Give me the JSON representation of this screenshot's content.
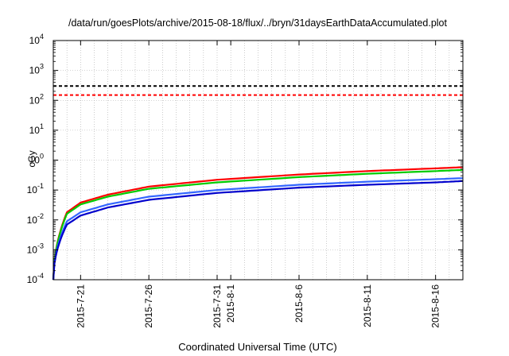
{
  "chart_data": {
    "type": "line",
    "title": "/data/run/goesPlots/archive/2015-08-18/flux/../bryn/31daysEarthDataAccumulated.plot",
    "xlabel": "Coordinated Universal Time (UTC)",
    "ylabel": "cGy",
    "yscale": "log",
    "ylim": [
      0.0001,
      10000
    ],
    "xlim": [
      "2015-07-19",
      "2015-08-18"
    ],
    "grid": true,
    "y_ticks": [
      {
        "base": "10",
        "exp": "-4",
        "value": 0.0001
      },
      {
        "base": "10",
        "exp": "-3",
        "value": 0.001
      },
      {
        "base": "10",
        "exp": "-2",
        "value": 0.01
      },
      {
        "base": "10",
        "exp": "-1",
        "value": 0.1
      },
      {
        "base": "10",
        "exp": "0",
        "value": 1
      },
      {
        "base": "10",
        "exp": "1",
        "value": 10
      },
      {
        "base": "10",
        "exp": "2",
        "value": 100
      },
      {
        "base": "10",
        "exp": "3",
        "value": 1000
      },
      {
        "base": "10",
        "exp": "4",
        "value": 10000
      }
    ],
    "x_ticks": [
      {
        "label": "2015-7-21",
        "date": "2015-07-21"
      },
      {
        "label": "2015-7-26",
        "date": "2015-07-26"
      },
      {
        "label": "2015-7-31",
        "date": "2015-07-31"
      },
      {
        "label": "2015-8-1",
        "date": "2015-08-01"
      },
      {
        "label": "2015-8-6",
        "date": "2015-08-06"
      },
      {
        "label": "2015-8-11",
        "date": "2015-08-11"
      },
      {
        "label": "2015-8-16",
        "date": "2015-08-16"
      }
    ],
    "reference_lines": [
      {
        "value": 300,
        "color": "#000000",
        "style": "dashed"
      },
      {
        "value": 150,
        "color": "#ff0000",
        "style": "dashed"
      }
    ],
    "series": [
      {
        "color": "#ff0000",
        "x": [
          "2015-07-19",
          "2015-07-20",
          "2015-07-21",
          "2015-07-23",
          "2015-07-26",
          "2015-07-31",
          "2015-08-06",
          "2015-08-11",
          "2015-08-16",
          "2015-08-18"
        ],
        "values": [
          0.0001,
          0.018,
          0.038,
          0.07,
          0.13,
          0.22,
          0.33,
          0.43,
          0.53,
          0.58
        ]
      },
      {
        "color": "#00cc00",
        "x": [
          "2015-07-19",
          "2015-07-20",
          "2015-07-21",
          "2015-07-23",
          "2015-07-26",
          "2015-07-31",
          "2015-08-06",
          "2015-08-11",
          "2015-08-16",
          "2015-08-18"
        ],
        "values": [
          0.0001,
          0.016,
          0.033,
          0.06,
          0.11,
          0.18,
          0.27,
          0.35,
          0.43,
          0.47
        ]
      },
      {
        "color": "#3366ff",
        "x": [
          "2015-07-19",
          "2015-07-20",
          "2015-07-21",
          "2015-07-23",
          "2015-07-26",
          "2015-07-31",
          "2015-08-06",
          "2015-08-11",
          "2015-08-16",
          "2015-08-18"
        ],
        "values": [
          0.0001,
          0.009,
          0.018,
          0.033,
          0.06,
          0.1,
          0.15,
          0.19,
          0.23,
          0.25
        ]
      },
      {
        "color": "#0000cc",
        "x": [
          "2015-07-19",
          "2015-07-20",
          "2015-07-21",
          "2015-07-23",
          "2015-07-26",
          "2015-07-31",
          "2015-08-06",
          "2015-08-11",
          "2015-08-16",
          "2015-08-18"
        ],
        "values": [
          0.0001,
          0.007,
          0.014,
          0.026,
          0.047,
          0.08,
          0.12,
          0.15,
          0.18,
          0.2
        ]
      }
    ]
  }
}
